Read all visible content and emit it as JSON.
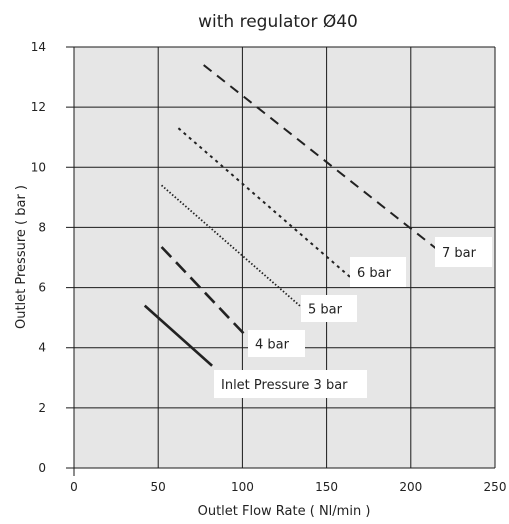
{
  "chart_data": {
    "type": "line",
    "title": "with regulator Ø40",
    "xlabel": "Outlet Flow Rate ( Nl/min )",
    "ylabel": "Outlet Pressure ( bar )",
    "xlim": [
      0,
      250
    ],
    "ylim": [
      0,
      14
    ],
    "x_ticks": [
      "0",
      "50",
      "100",
      "150",
      "200",
      "250"
    ],
    "y_ticks": [
      "0",
      "2",
      "4",
      "6",
      "8",
      "10",
      "12",
      "14"
    ],
    "grid": true,
    "series": [
      {
        "name": "Inlet Pressure 3 bar",
        "style": "solid",
        "x": [
          42,
          82
        ],
        "y": [
          5.4,
          3.4
        ]
      },
      {
        "name": "4 bar",
        "style": "dashed-long",
        "x": [
          52,
          102
        ],
        "y": [
          7.35,
          4.4
        ]
      },
      {
        "name": "5 bar",
        "style": "dotted-fine",
        "x": [
          52,
          135
        ],
        "y": [
          9.4,
          5.35
        ]
      },
      {
        "name": "6 bar",
        "style": "dotted",
        "x": [
          62,
          165
        ],
        "y": [
          11.3,
          6.3
        ]
      },
      {
        "name": "7 bar",
        "style": "dashed",
        "x": [
          77,
          215
        ],
        "y": [
          13.4,
          7.3
        ]
      }
    ]
  }
}
